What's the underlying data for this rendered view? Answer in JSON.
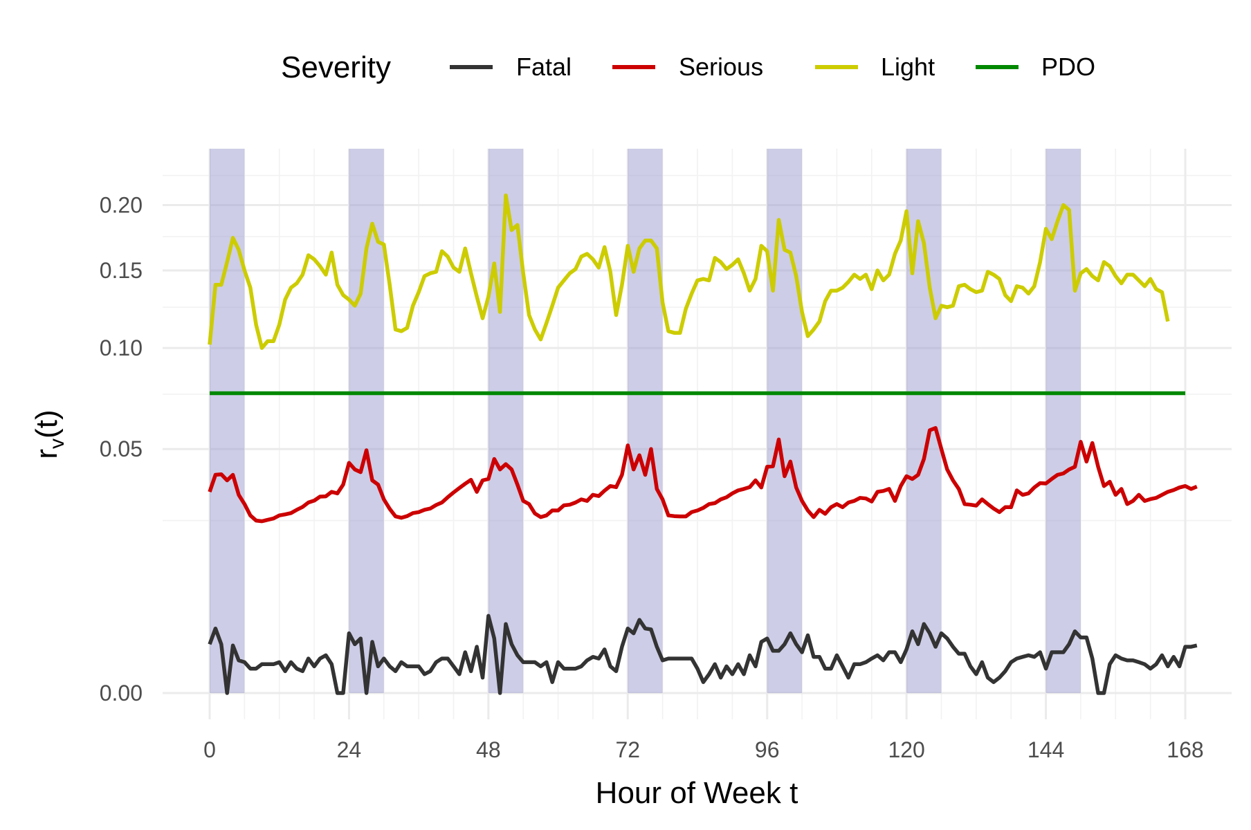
{
  "chart_data": {
    "type": "line",
    "xlabel": "Hour of Week t",
    "ylabel_main": "r",
    "ylabel_sub": "v",
    "ylabel_suffix": "(t)",
    "xlim": [
      0,
      168
    ],
    "x_ticks": [
      0,
      24,
      48,
      72,
      96,
      120,
      144,
      168
    ],
    "x_tick_labels": [
      "0",
      "24",
      "48",
      "72",
      "96",
      "120",
      "144",
      "168"
    ],
    "y_scale": "sqrt",
    "ylim": [
      0,
      0.22
    ],
    "y_ticks": [
      0.0,
      0.05,
      0.1,
      0.15,
      0.2
    ],
    "y_tick_labels": [
      "0.00",
      "0.05",
      "0.10",
      "0.15",
      "0.20"
    ],
    "grid": true,
    "shaded_x_ranges": [
      [
        0,
        6
      ],
      [
        24,
        30
      ],
      [
        48,
        54
      ],
      [
        72,
        78
      ],
      [
        96,
        102
      ],
      [
        120,
        126
      ],
      [
        144,
        150
      ]
    ],
    "shade_color": "#9b9bd0",
    "legend": {
      "title": "Severity",
      "position": "top",
      "entries": [
        "Fatal",
        "Serious",
        "Light",
        "PDO"
      ]
    },
    "series": [
      {
        "name": "Fatal",
        "color": "#333333",
        "x_start": 0,
        "x_step": 1,
        "values": [
          0.002,
          0.0035,
          0.002,
          0.0,
          0.0019,
          0.0009,
          0.0008,
          0.0005,
          0.0005,
          0.0007,
          0.0007,
          0.0007,
          0.0008,
          0.0004,
          0.0008,
          0.0005,
          0.0004,
          0.001,
          0.0006,
          0.001,
          0.0012,
          0.0007,
          0.0,
          0.0,
          0.003,
          0.002,
          0.0025,
          0.0,
          0.0022,
          0.0006,
          0.001,
          0.0006,
          0.0004,
          0.0008,
          0.0006,
          0.0006,
          0.0006,
          0.0003,
          0.0004,
          0.0008,
          0.001,
          0.001,
          0.0006,
          0.0003,
          0.0014,
          0.0004,
          0.0018,
          0.0002,
          0.005,
          0.0025,
          0.0,
          0.004,
          0.002,
          0.0012,
          0.0008,
          0.0008,
          0.0008,
          0.0006,
          0.0008,
          0.0001,
          0.0008,
          0.0005,
          0.0005,
          0.0005,
          0.0006,
          0.0009,
          0.0011,
          0.001,
          0.0016,
          0.0006,
          0.0004,
          0.0018,
          0.0035,
          0.003,
          0.0045,
          0.0035,
          0.0034,
          0.0018,
          0.0009,
          0.001,
          0.001,
          0.001,
          0.001,
          0.001,
          0.0005,
          0.0001,
          0.0003,
          0.0007,
          0.0002,
          0.0006,
          0.0003,
          0.0007,
          0.0003,
          0.0012,
          0.0006,
          0.0022,
          0.0025,
          0.0015,
          0.0015,
          0.002,
          0.003,
          0.002,
          0.0014,
          0.0028,
          0.0011,
          0.0011,
          0.0005,
          0.0005,
          0.0012,
          0.0006,
          0.0002,
          0.0007,
          0.0007,
          0.0008,
          0.001,
          0.0012,
          0.0009,
          0.0014,
          0.0014,
          0.0008,
          0.0016,
          0.0032,
          0.002,
          0.004,
          0.003,
          0.0018,
          0.003,
          0.0025,
          0.0018,
          0.0013,
          0.0013,
          0.0006,
          0.0003,
          0.0008,
          0.0002,
          0.0001,
          0.0002,
          0.0004,
          0.0008,
          0.001,
          0.0011,
          0.0012,
          0.0011,
          0.0014,
          0.0005,
          0.0014,
          0.0014,
          0.0014,
          0.002,
          0.0032,
          0.0026,
          0.0026,
          0.001,
          0.0,
          0.0,
          0.0007,
          0.0012,
          0.001,
          0.0009,
          0.0009,
          0.0008,
          0.0007,
          0.0005,
          0.0007,
          0.0012,
          0.0006,
          0.0011,
          0.0006,
          0.0018,
          0.0018,
          0.0019
        ]
      },
      {
        "name": "Serious",
        "color": "#cc0000",
        "x_start": 0,
        "x_step": 1,
        "values": [
          0.034,
          0.04,
          0.0402,
          0.038,
          0.04,
          0.033,
          0.03,
          0.0265,
          0.025,
          0.0248,
          0.0252,
          0.0256,
          0.0265,
          0.0268,
          0.0272,
          0.0282,
          0.0291,
          0.0305,
          0.0311,
          0.0324,
          0.0325,
          0.034,
          0.0335,
          0.0365,
          0.0445,
          0.042,
          0.041,
          0.0495,
          0.038,
          0.0365,
          0.0315,
          0.0285,
          0.0262,
          0.0258,
          0.0263,
          0.0272,
          0.0275,
          0.0282,
          0.0286,
          0.0297,
          0.0305,
          0.0322,
          0.0338,
          0.0353,
          0.0368,
          0.0382,
          0.034,
          0.038,
          0.0385,
          0.046,
          0.042,
          0.044,
          0.042,
          0.0365,
          0.031,
          0.03,
          0.0271,
          0.026,
          0.0265,
          0.028,
          0.028,
          0.0296,
          0.0298,
          0.0305,
          0.0315,
          0.031,
          0.033,
          0.0326,
          0.0344,
          0.036,
          0.0356,
          0.04,
          0.0515,
          0.042,
          0.0475,
          0.04,
          0.05,
          0.035,
          0.0315,
          0.0265,
          0.0263,
          0.0262,
          0.0262,
          0.0275,
          0.028,
          0.0288,
          0.03,
          0.0303,
          0.0315,
          0.0322,
          0.0335,
          0.0345,
          0.035,
          0.0356,
          0.038,
          0.0355,
          0.043,
          0.0432,
          0.054,
          0.0395,
          0.045,
          0.0355,
          0.031,
          0.028,
          0.026,
          0.0282,
          0.027,
          0.029,
          0.03,
          0.029,
          0.0305,
          0.031,
          0.032,
          0.0318,
          0.0308,
          0.034,
          0.0343,
          0.035,
          0.031,
          0.036,
          0.0395,
          0.0385,
          0.04,
          0.046,
          0.058,
          0.059,
          0.05,
          0.042,
          0.038,
          0.035,
          0.03,
          0.0298,
          0.0295,
          0.0315,
          0.03,
          0.0286,
          0.0275,
          0.029,
          0.029,
          0.0345,
          0.033,
          0.0335,
          0.0355,
          0.037,
          0.0369,
          0.0385,
          0.04,
          0.0405,
          0.042,
          0.043,
          0.053,
          0.045,
          0.0525,
          0.043,
          0.036,
          0.0375,
          0.033,
          0.035,
          0.03,
          0.031,
          0.033,
          0.031,
          0.0316,
          0.032,
          0.033,
          0.034,
          0.0346,
          0.0355,
          0.036,
          0.035,
          0.0358
        ]
      },
      {
        "name": "Light",
        "color": "#cccc00",
        "x_start": 0,
        "x_step": 1,
        "values": [
          0.102,
          0.14,
          0.14,
          0.156,
          0.174,
          0.165,
          0.15,
          0.138,
          0.114,
          0.1,
          0.104,
          0.104,
          0.114,
          0.13,
          0.138,
          0.141,
          0.147,
          0.161,
          0.158,
          0.153,
          0.147,
          0.163,
          0.14,
          0.133,
          0.13,
          0.126,
          0.134,
          0.166,
          0.185,
          0.171,
          0.169,
          0.14,
          0.111,
          0.11,
          0.112,
          0.126,
          0.135,
          0.146,
          0.148,
          0.149,
          0.164,
          0.16,
          0.152,
          0.149,
          0.166,
          0.148,
          0.132,
          0.118,
          0.132,
          0.155,
          0.122,
          0.208,
          0.18,
          0.184,
          0.148,
          0.12,
          0.111,
          0.105,
          0.115,
          0.126,
          0.138,
          0.143,
          0.148,
          0.151,
          0.16,
          0.162,
          0.158,
          0.152,
          0.167,
          0.149,
          0.12,
          0.14,
          0.168,
          0.149,
          0.166,
          0.172,
          0.172,
          0.166,
          0.128,
          0.11,
          0.109,
          0.109,
          0.124,
          0.134,
          0.143,
          0.144,
          0.143,
          0.159,
          0.156,
          0.151,
          0.154,
          0.158,
          0.148,
          0.136,
          0.144,
          0.168,
          0.164,
          0.136,
          0.188,
          0.165,
          0.163,
          0.146,
          0.122,
          0.107,
          0.111,
          0.116,
          0.129,
          0.136,
          0.136,
          0.138,
          0.142,
          0.147,
          0.144,
          0.147,
          0.137,
          0.15,
          0.143,
          0.147,
          0.162,
          0.172,
          0.195,
          0.148,
          0.187,
          0.17,
          0.138,
          0.118,
          0.126,
          0.125,
          0.126,
          0.139,
          0.14,
          0.137,
          0.135,
          0.136,
          0.149,
          0.147,
          0.144,
          0.133,
          0.129,
          0.139,
          0.138,
          0.134,
          0.139,
          0.156,
          0.181,
          0.173,
          0.187,
          0.2,
          0.196,
          0.136,
          0.148,
          0.151,
          0.146,
          0.143,
          0.156,
          0.153,
          0.146,
          0.141,
          0.147,
          0.147,
          0.143,
          0.139,
          0.144,
          0.137,
          0.135,
          0.116
        ]
      },
      {
        "name": "PDO",
        "color": "#008800",
        "x": [
          0,
          168
        ],
        "values": [
          0.0755,
          0.0755
        ]
      }
    ]
  }
}
